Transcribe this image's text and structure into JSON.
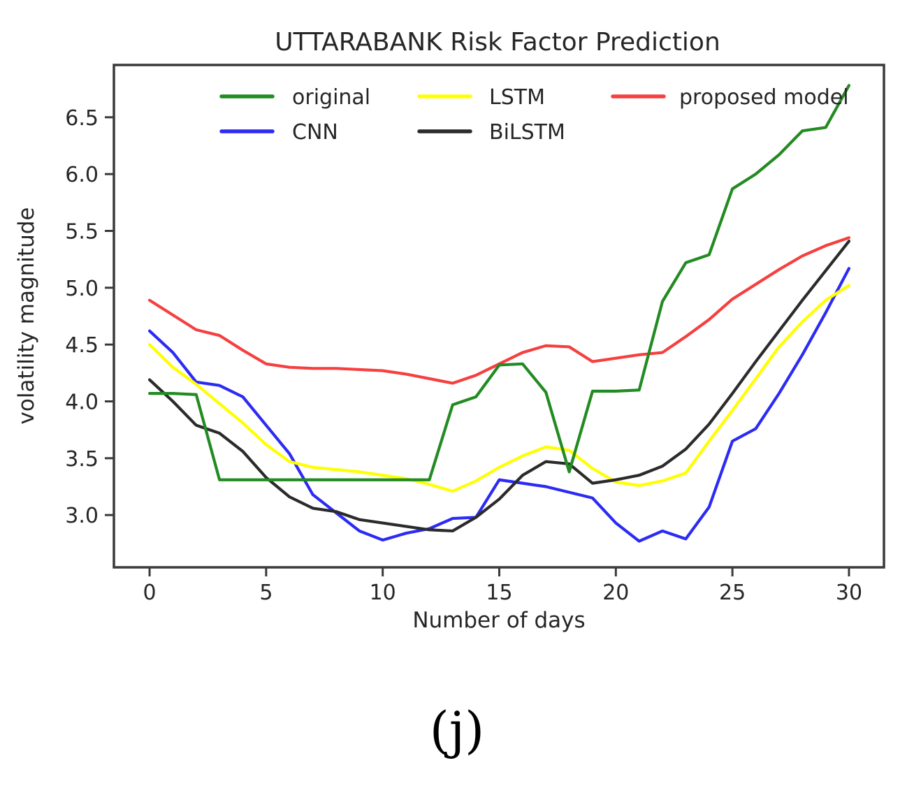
{
  "caption": "(j)",
  "chart_data": {
    "type": "line",
    "title": "UTTARABANK Risk Factor Prediction",
    "xlabel": "Number of days",
    "ylabel": "volatility magnitude",
    "xlim": [
      -1.53,
      31.5
    ],
    "ylim": [
      2.54,
      6.96
    ],
    "grid": false,
    "legend_position": "upper center inside plot, 3 columns, no frame",
    "xticks": [
      "0",
      "5",
      "10",
      "15",
      "20",
      "25",
      "30"
    ],
    "yticks": [
      "3.0",
      "3.5",
      "4.0",
      "4.5",
      "5.0",
      "5.5",
      "6.0",
      "6.5"
    ],
    "x": [
      0,
      1,
      2,
      3,
      4,
      5,
      6,
      7,
      8,
      9,
      10,
      11,
      12,
      13,
      14,
      15,
      16,
      17,
      18,
      19,
      20,
      21,
      22,
      23,
      24,
      25,
      26,
      27,
      28,
      29,
      30
    ],
    "series": [
      {
        "name": "original",
        "color": "#228b22",
        "values": [
          4.07,
          4.07,
          4.06,
          3.31,
          3.31,
          3.31,
          3.31,
          3.31,
          3.31,
          3.31,
          3.31,
          3.31,
          3.31,
          3.97,
          4.04,
          4.32,
          4.33,
          4.08,
          3.38,
          4.09,
          4.09,
          4.1,
          4.88,
          5.22,
          5.29,
          5.87,
          6.0,
          6.17,
          6.38,
          6.41,
          6.78
        ]
      },
      {
        "name": "CNN",
        "color": "#2b2bf5",
        "values": [
          4.62,
          4.43,
          4.17,
          4.14,
          4.04,
          3.79,
          3.54,
          3.18,
          3.02,
          2.86,
          2.78,
          2.84,
          2.88,
          2.97,
          2.98,
          3.31,
          3.28,
          3.25,
          3.2,
          3.15,
          2.93,
          2.77,
          2.86,
          2.79,
          3.07,
          3.65,
          3.76,
          4.07,
          4.41,
          4.78,
          5.17
        ]
      },
      {
        "name": "LSTM",
        "color": "#ffff00",
        "values": [
          4.5,
          4.3,
          4.15,
          3.98,
          3.81,
          3.62,
          3.47,
          3.42,
          3.4,
          3.38,
          3.35,
          3.32,
          3.27,
          3.21,
          3.3,
          3.42,
          3.52,
          3.6,
          3.57,
          3.41,
          3.29,
          3.26,
          3.3,
          3.37,
          3.65,
          3.92,
          4.2,
          4.48,
          4.7,
          4.89,
          5.02
        ]
      },
      {
        "name": "BiLSTM",
        "color": "#2b2b2b",
        "values": [
          4.19,
          4.0,
          3.79,
          3.72,
          3.56,
          3.33,
          3.16,
          3.06,
          3.03,
          2.96,
          2.93,
          2.9,
          2.87,
          2.86,
          2.98,
          3.14,
          3.35,
          3.47,
          3.45,
          3.28,
          3.31,
          3.35,
          3.43,
          3.58,
          3.8,
          4.07,
          4.35,
          4.62,
          4.89,
          5.15,
          5.41
        ]
      },
      {
        "name": "proposed model",
        "color": "#f64040",
        "values": [
          4.89,
          4.76,
          4.63,
          4.58,
          4.45,
          4.33,
          4.3,
          4.29,
          4.29,
          4.28,
          4.27,
          4.24,
          4.2,
          4.16,
          4.23,
          4.33,
          4.43,
          4.49,
          4.48,
          4.35,
          4.38,
          4.41,
          4.43,
          4.57,
          4.72,
          4.9,
          5.03,
          5.16,
          5.28,
          5.37,
          5.44
        ]
      }
    ]
  },
  "colors": {
    "text": "#262626",
    "spine": "#3a3a3a",
    "background": "#ffffff"
  }
}
